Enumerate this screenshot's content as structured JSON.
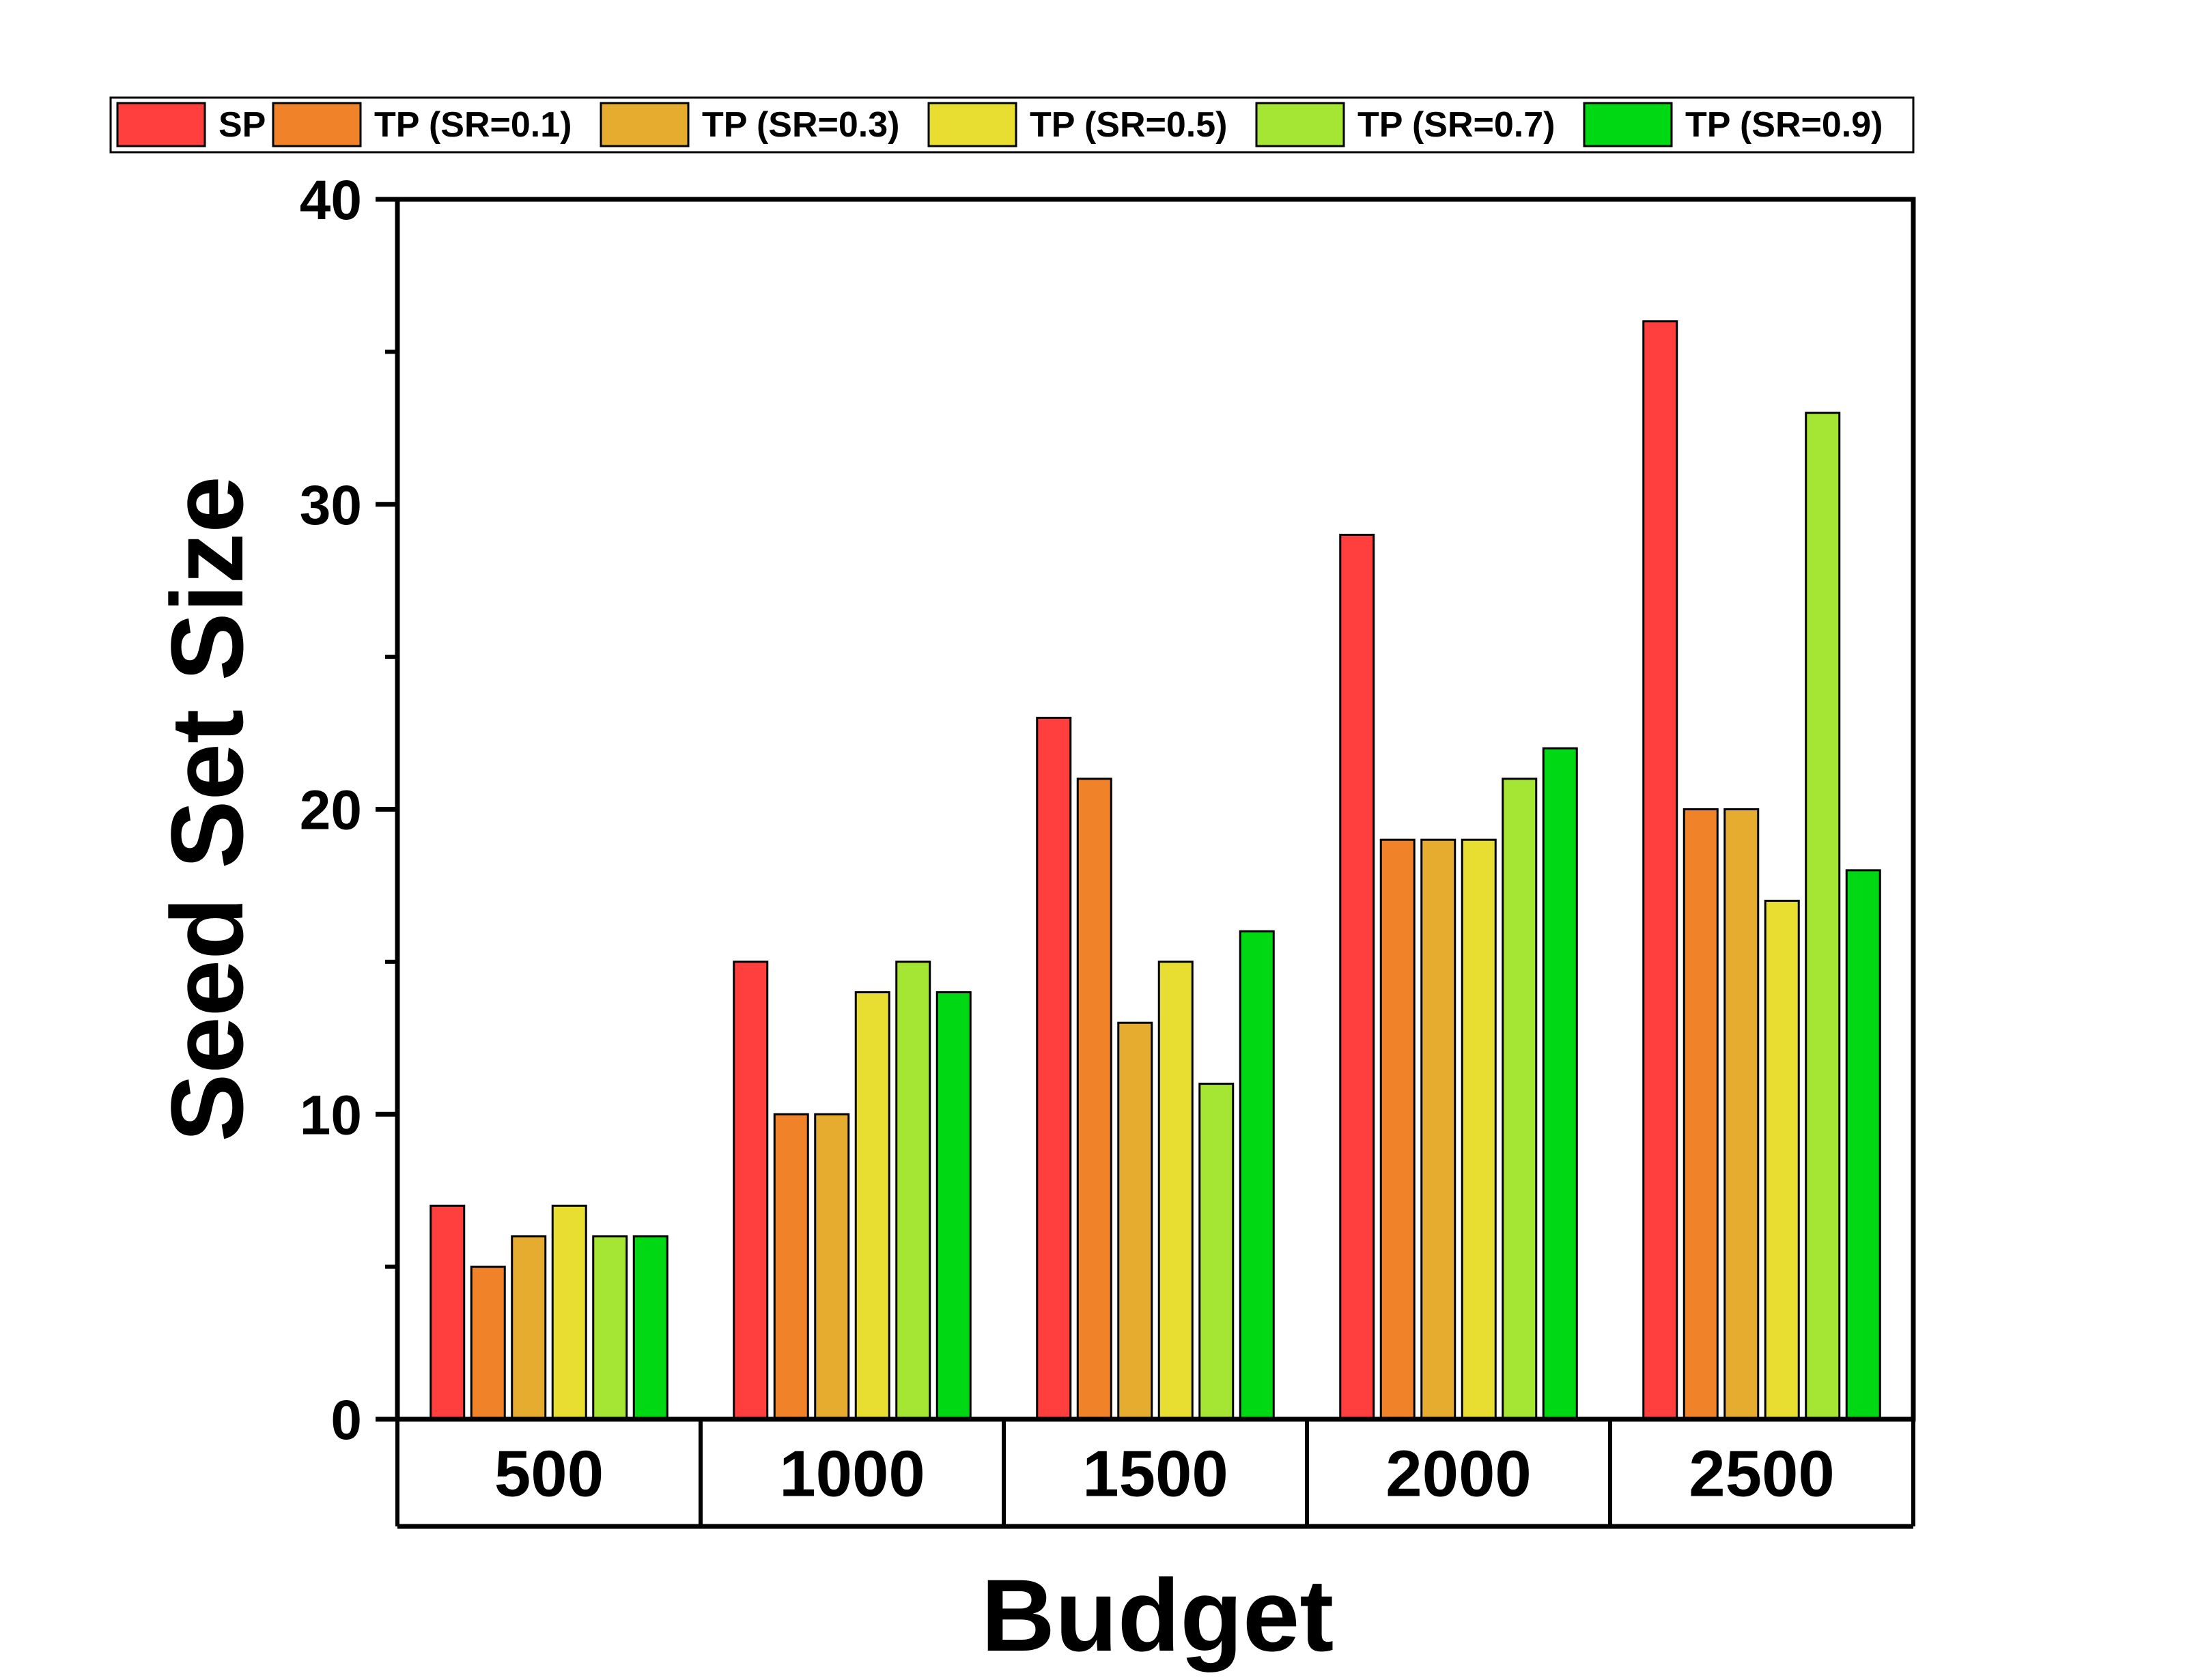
{
  "chart_data": {
    "type": "bar",
    "title": "",
    "xlabel": "Budget",
    "ylabel": "Seed Set Size",
    "categories": [
      "500",
      "1000",
      "1500",
      "2000",
      "2500"
    ],
    "ylim": [
      0,
      40
    ],
    "yticks": [
      "0",
      "10",
      "20",
      "30",
      "40"
    ],
    "legend_position": "top",
    "series": [
      {
        "name": "SP",
        "color": "#ff3e3e",
        "values": [
          7,
          15,
          23,
          29,
          36
        ]
      },
      {
        "name": "TP (SR=0.1)",
        "color": "#f0832a",
        "values": [
          5,
          10,
          21,
          19,
          20
        ]
      },
      {
        "name": "TP (SR=0.3)",
        "color": "#e6ac30",
        "values": [
          6,
          10,
          13,
          19,
          20
        ]
      },
      {
        "name": "TP (SR=0.5)",
        "color": "#e8de32",
        "values": [
          7,
          14,
          15,
          19,
          17
        ]
      },
      {
        "name": "TP (SR=0.7)",
        "color": "#a5e635",
        "values": [
          6,
          15,
          11,
          21,
          33
        ]
      },
      {
        "name": "TP (SR=0.9)",
        "color": "#00d814",
        "values": [
          6,
          14,
          16,
          22,
          18
        ]
      }
    ]
  }
}
